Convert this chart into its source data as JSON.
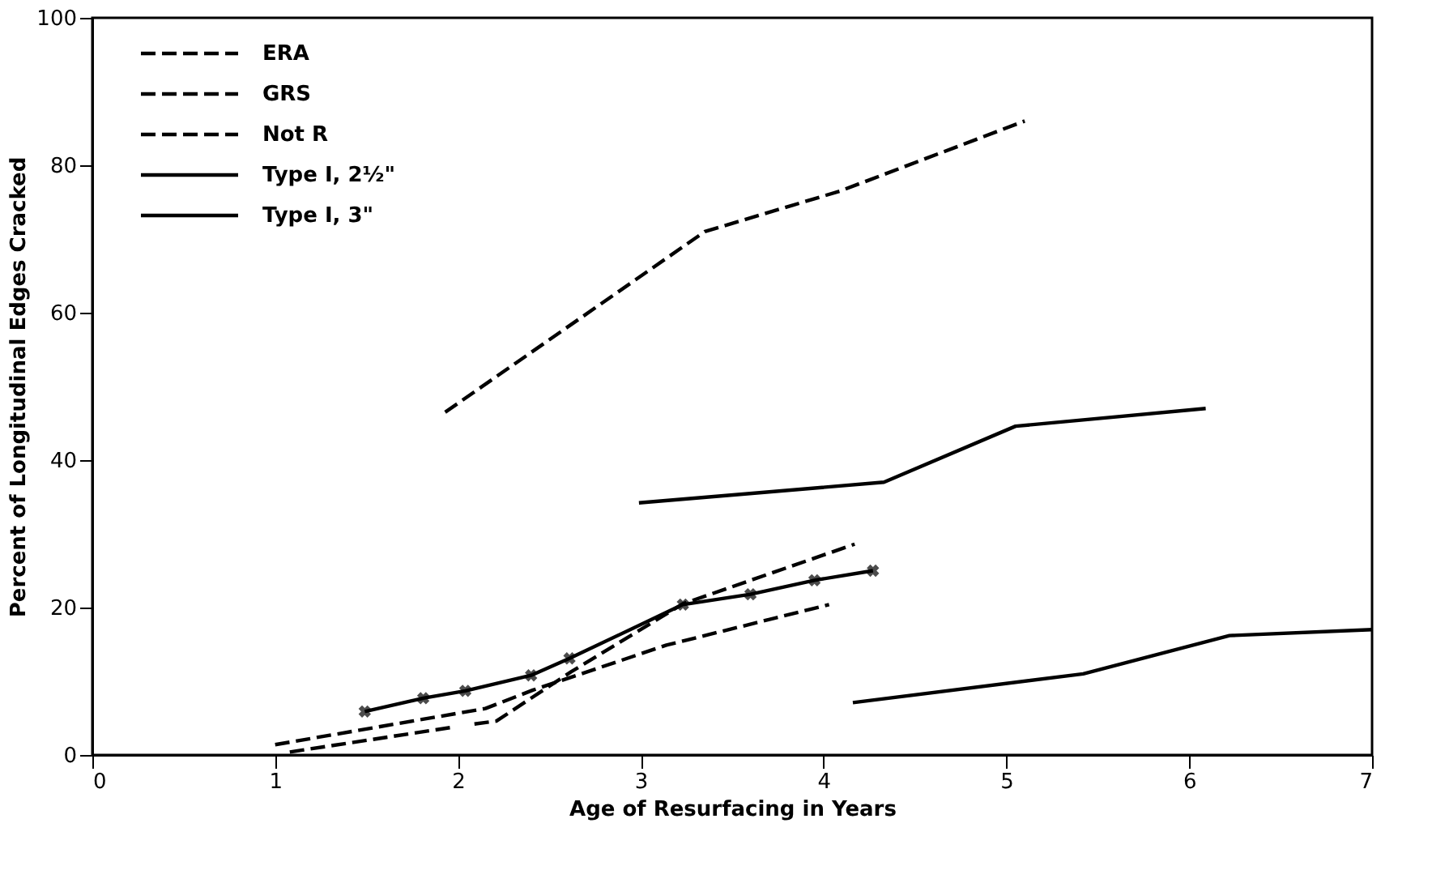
{
  "chart_data": {
    "type": "line",
    "xlabel": "Age of  Resurfacing in Years",
    "ylabel": "Percent of Longitudinal Edges Cracked",
    "xlim": [
      0,
      7
    ],
    "xticks": [
      0,
      1,
      2,
      3,
      4,
      5,
      6,
      7
    ],
    "ylim": [
      0,
      100
    ],
    "yticks": [
      0,
      20,
      40,
      60,
      80,
      100
    ],
    "grid": false,
    "legend": "top left",
    "series": [
      {
        "name": "ERA",
        "color": "#000000",
        "line_style": "dashed",
        "x": [
          1.93,
          3.35,
          4.09,
          5.1
        ],
        "values": [
          46.5,
          71,
          76.5,
          86
        ]
      },
      {
        "name": "GRS",
        "color": "#000000",
        "line_style": "dashed",
        "x": [
          2.09,
          2.21,
          2.62,
          3.23,
          4.17
        ],
        "values": [
          4.2,
          4.6,
          11.3,
          20.5,
          28.6
        ]
      },
      {
        "name": "Not R",
        "color": "#000000",
        "line_style": "dashed",
        "x": [
          1.08,
          1.98
        ],
        "values": [
          0.4,
          3.8
        ]
      },
      {
        "name": "Type I, 2½\"",
        "color": "#000000",
        "line_style": "solid",
        "x": [
          2.99,
          4.33,
          5.05,
          6.09
        ],
        "values": [
          34.2,
          37,
          44.6,
          47
        ]
      },
      {
        "name": "Type I, 3\"",
        "color": "#000000",
        "line_style": "solid",
        "marker": "cross",
        "x": [
          1.49,
          1.81,
          2.04,
          2.4,
          2.61,
          3.23,
          3.6,
          3.95,
          4.27
        ],
        "values": [
          5.9,
          7.7,
          8.7,
          10.8,
          13.1,
          20.4,
          21.8,
          23.7,
          25
        ]
      },
      {
        "color": "#000000",
        "line_style": "solid",
        "x": [
          4.16,
          5.42,
          6.22,
          7
        ],
        "values": [
          7.1,
          11,
          16.2,
          17
        ]
      },
      {
        "color": "#000000",
        "line_style": "dashed",
        "x": [
          1.0,
          2.15,
          2.41,
          3.14,
          4.03
        ],
        "values": [
          1.4,
          6.3,
          8.8,
          14.9,
          20.4
        ]
      }
    ]
  }
}
